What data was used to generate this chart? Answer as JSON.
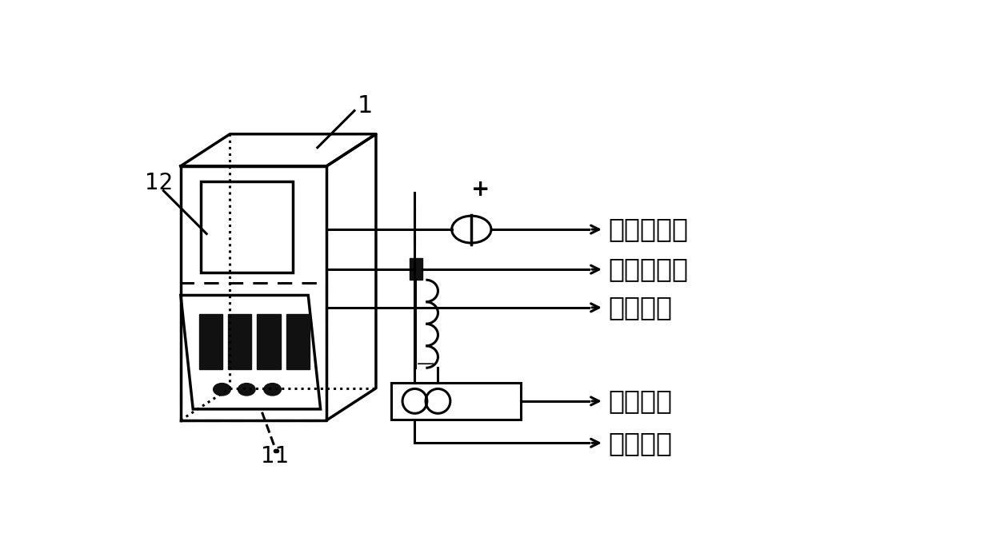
{
  "background_color": "#ffffff",
  "line_color": "#000000",
  "label_1": "1",
  "label_11": "11",
  "label_12": "12",
  "label_current": "电流传感器",
  "label_temp": "温度传感器",
  "label_coil": "跳闸线圈",
  "label_protect": "保护信号",
  "label_contact": "接点信号",
  "label_plus": "+",
  "label_minus": "—"
}
